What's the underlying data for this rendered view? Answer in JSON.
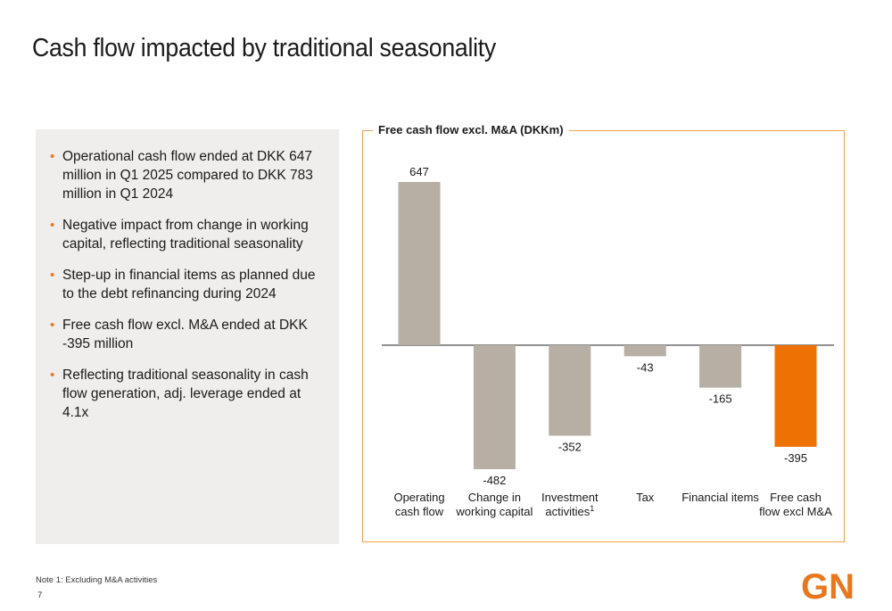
{
  "page": {
    "title": "Cash flow impacted by traditional seasonality",
    "note": "Note 1: Excluding M&A activities",
    "page_number": "7",
    "logo_text": "GN"
  },
  "bullets": [
    "Operational cash flow ended at DKK 647 million in Q1 2025 compared to DKK 783 million in Q1 2024",
    "Negative impact from change in working capital, reflecting traditional seasonality",
    "Step-up in financial items as planned due to the debt refinancing during 2024",
    "Free cash flow excl. M&A ended at DKK -395 million",
    "Reflecting traditional seasonality in cash flow generation, adj. leverage ended at 4.1x"
  ],
  "colors": {
    "bar_default": "#b7aea4",
    "bar_highlight": "#ee7203",
    "accent": "#e8781e",
    "frame": "#f0a04b"
  },
  "chart_data": {
    "type": "bar",
    "title": "Free cash flow excl. M&A (DKKm)",
    "categories": [
      [
        "Operating",
        "cash flow"
      ],
      [
        "Change in",
        "working capital"
      ],
      [
        "Investment",
        "activities"
      ],
      [
        "Tax"
      ],
      [
        "Financial items"
      ],
      [
        "Free cash",
        "flow excl M&A"
      ]
    ],
    "category_superscripts": [
      "",
      "",
      "1",
      "",
      "",
      ""
    ],
    "values": [
      647,
      -482,
      -352,
      -43,
      -165,
      -395
    ],
    "value_labels": [
      "647",
      "-482",
      "-352",
      "-43",
      "-165",
      "-395"
    ],
    "highlight_index": 5,
    "ylim": [
      -482,
      647
    ],
    "grid": false,
    "legend": "none"
  }
}
